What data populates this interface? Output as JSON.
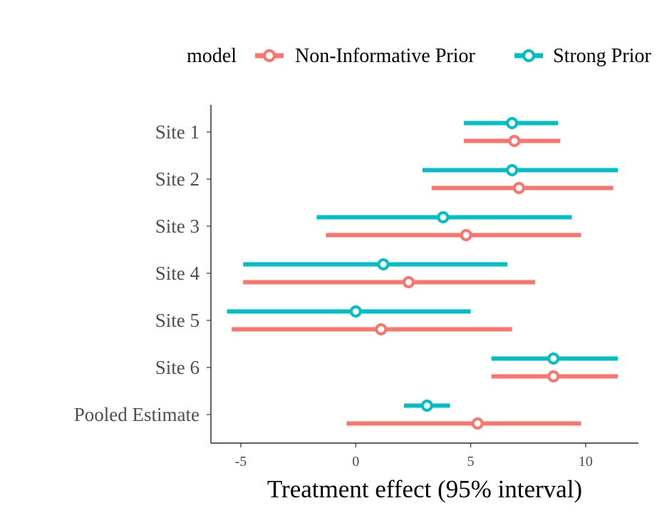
{
  "chart_data": {
    "type": "forest",
    "legend": {
      "title": "model",
      "position": "top",
      "entries": [
        {
          "name": "Non-Informative Prior",
          "color": "#F8766D"
        },
        {
          "name": "Strong Prior",
          "color": "#00BFC4"
        }
      ]
    },
    "xlabel": "Treatment effect (95% interval)",
    "ylabel": "",
    "xlim": [
      -6.3,
      12.3
    ],
    "xticks": [
      {
        "value": -5,
        "label": "-5"
      },
      {
        "value": 0,
        "label": "0"
      },
      {
        "value": 5,
        "label": "5"
      },
      {
        "value": 10,
        "label": "10"
      }
    ],
    "categories": [
      "Site 1",
      "Site 2",
      "Site 3",
      "Site 4",
      "Site 5",
      "Site 6",
      "Pooled Estimate"
    ],
    "series": [
      {
        "name": "Non-Informative Prior",
        "color": "#F8766D",
        "points": [
          {
            "category": "Site 1",
            "estimate": 6.9,
            "lower": 4.7,
            "upper": 8.9
          },
          {
            "category": "Site 2",
            "estimate": 7.1,
            "lower": 3.3,
            "upper": 11.2
          },
          {
            "category": "Site 3",
            "estimate": 4.8,
            "lower": -1.3,
            "upper": 9.8
          },
          {
            "category": "Site 4",
            "estimate": 2.3,
            "lower": -4.9,
            "upper": 7.8
          },
          {
            "category": "Site 5",
            "estimate": 1.1,
            "lower": -5.4,
            "upper": 6.8
          },
          {
            "category": "Site 6",
            "estimate": 8.6,
            "lower": 5.9,
            "upper": 11.4
          },
          {
            "category": "Pooled Estimate",
            "estimate": 5.3,
            "lower": -0.4,
            "upper": 9.8
          }
        ]
      },
      {
        "name": "Strong Prior",
        "color": "#00BFC4",
        "points": [
          {
            "category": "Site 1",
            "estimate": 6.8,
            "lower": 4.7,
            "upper": 8.8
          },
          {
            "category": "Site 2",
            "estimate": 6.8,
            "lower": 2.9,
            "upper": 11.4
          },
          {
            "category": "Site 3",
            "estimate": 3.8,
            "lower": -1.7,
            "upper": 9.4
          },
          {
            "category": "Site 4",
            "estimate": 1.2,
            "lower": -4.9,
            "upper": 6.6
          },
          {
            "category": "Site 5",
            "estimate": 0.0,
            "lower": -5.6,
            "upper": 5.0
          },
          {
            "category": "Site 6",
            "estimate": 8.6,
            "lower": 5.9,
            "upper": 11.4
          },
          {
            "category": "Pooled Estimate",
            "estimate": 3.1,
            "lower": 2.1,
            "upper": 4.1
          }
        ]
      }
    ],
    "grid": false
  }
}
